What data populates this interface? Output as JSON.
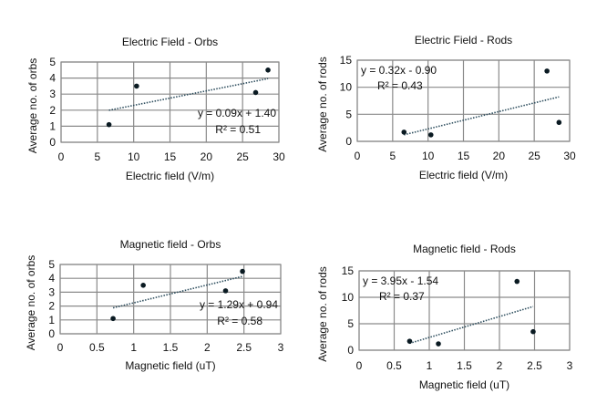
{
  "chart_data": [
    {
      "type": "scatter",
      "title": "Electric Field - Orbs",
      "xlabel": "Electric field (V/m)",
      "ylabel": "Average no. of orbs",
      "x": [
        6.6,
        10.4,
        26.8,
        28.5
      ],
      "y": [
        1.1,
        3.5,
        3.1,
        4.5
      ],
      "xlim": [
        0,
        30
      ],
      "ylim": [
        0,
        5
      ],
      "xticks": [
        "0",
        "5",
        "10",
        "15",
        "20",
        "25",
        "30"
      ],
      "yticks": [
        "0",
        "1",
        "2",
        "3",
        "4",
        "5"
      ],
      "trendline": {
        "slope": 0.09,
        "intercept": 1.4,
        "equation": "y = 0.09x + 1.40",
        "r2_label": "R² = 0.51"
      },
      "equation_placement": "bottom-right",
      "grid": true
    },
    {
      "type": "scatter",
      "title": "Electric Field - Rods",
      "xlabel": "Electric field (V/m)",
      "ylabel": "Average no. of rods",
      "x": [
        6.6,
        10.4,
        26.8,
        28.5
      ],
      "y": [
        1.7,
        1.2,
        13.0,
        3.5
      ],
      "xlim": [
        0,
        30
      ],
      "ylim": [
        0,
        15
      ],
      "xticks": [
        "0",
        "5",
        "10",
        "15",
        "20",
        "25",
        "30"
      ],
      "yticks": [
        "0",
        "5",
        "10",
        "15"
      ],
      "trendline": {
        "slope": 0.32,
        "intercept": -0.9,
        "equation": "y = 0.32x - 0.90",
        "r2_label": "R² = 0.43"
      },
      "equation_placement": "top-left",
      "grid": true
    },
    {
      "type": "scatter",
      "title": "Magnetic field - Orbs",
      "xlabel": "Magnetic field (uT)",
      "ylabel": "Average no. of orbs",
      "x": [
        0.72,
        1.13,
        2.25,
        2.48
      ],
      "y": [
        1.1,
        3.5,
        3.1,
        4.5
      ],
      "xlim": [
        0,
        3
      ],
      "ylim": [
        0,
        5
      ],
      "xticks": [
        "0",
        "0.5",
        "1",
        "1.5",
        "2",
        "2.5",
        "3"
      ],
      "yticks": [
        "0",
        "1",
        "2",
        "3",
        "4",
        "5"
      ],
      "trendline": {
        "slope": 1.29,
        "intercept": 0.94,
        "equation": "y = 1.29x + 0.94",
        "r2_label": "R² = 0.58"
      },
      "equation_placement": "bottom-right",
      "grid": true
    },
    {
      "type": "scatter",
      "title": "Magnetic field - Rods",
      "xlabel": "Magnetic field (uT)",
      "ylabel": "Average no. of rods",
      "x": [
        0.72,
        1.13,
        2.25,
        2.48
      ],
      "y": [
        1.7,
        1.2,
        13.0,
        3.5
      ],
      "xlim": [
        0,
        3
      ],
      "ylim": [
        0,
        15
      ],
      "xticks": [
        "0",
        "0.5",
        "1",
        "1.5",
        "2",
        "2.5",
        "3"
      ],
      "yticks": [
        "0",
        "5",
        "10",
        "15"
      ],
      "trendline": {
        "slope": 3.95,
        "intercept": -1.54,
        "equation": "y = 3.95x - 1.54",
        "r2_label": "R² = 0.37"
      },
      "equation_placement": "top-left",
      "grid": true
    }
  ]
}
